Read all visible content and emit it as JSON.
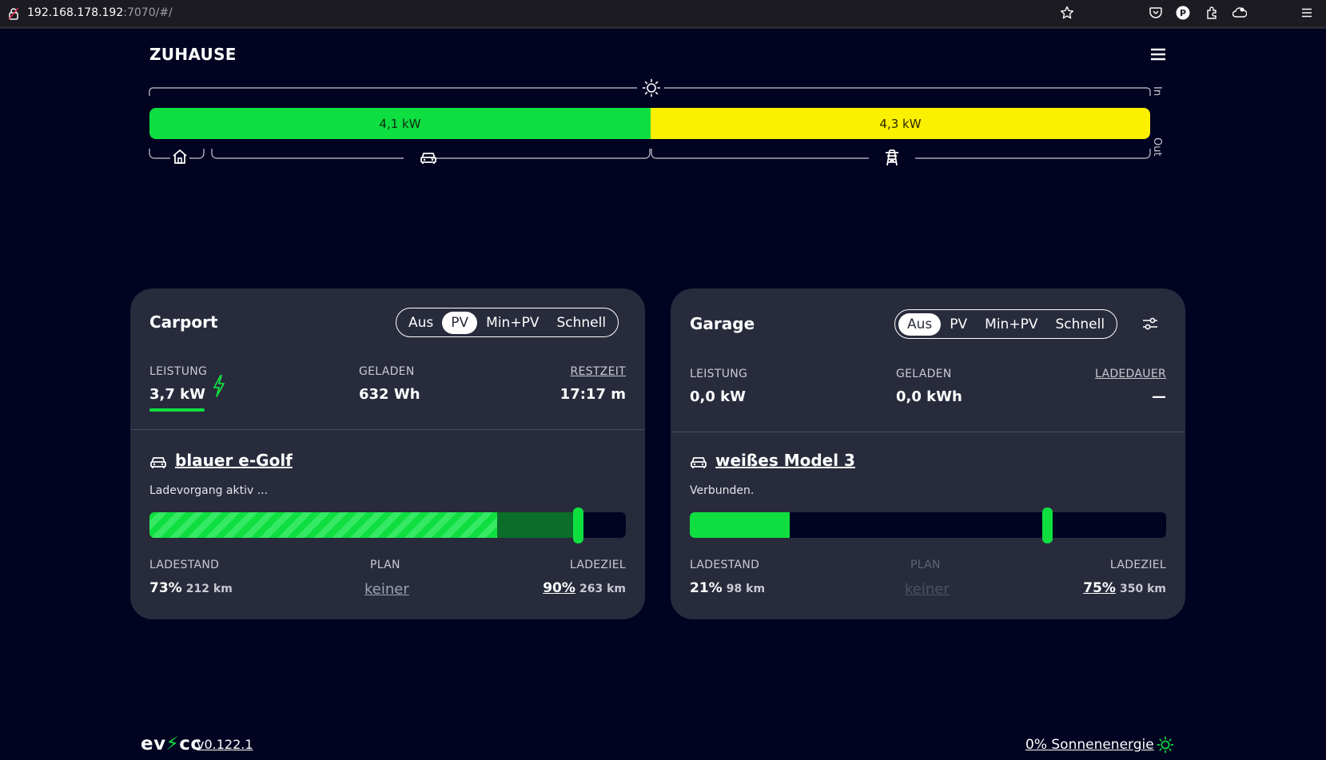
{
  "browser": {
    "url_host": "192.168.178.192",
    "url_rest": ":7070/#/"
  },
  "site": {
    "title": "ZUHAUSE"
  },
  "energyflow": {
    "pv_power": "4,1 kW",
    "grid_power": "4,3 kW",
    "in_label": "In",
    "out_label": "Out",
    "colors": {
      "pv": "#0fde41",
      "grid": "#faf000"
    }
  },
  "loadpoints": [
    {
      "title": "Carport",
      "modes": [
        "Aus",
        "PV",
        "Min+PV",
        "Schnell"
      ],
      "active_mode": "PV",
      "stats": {
        "power_label": "LEISTUNG",
        "power_value": "3,7 kW",
        "charged_label": "GELADEN",
        "charged_value": "632 Wh",
        "time_label": "RESTZEIT",
        "time_value": "17:17 m"
      },
      "vehicle": {
        "name": "blauer e-Golf",
        "status": "Ladevorgang aktiv ...",
        "soc_fraction": 0.73,
        "target_fraction": 0.9,
        "soc_label": "LADESTAND",
        "soc_pct": "73%",
        "soc_km": "212 km",
        "plan_label": "PLAN",
        "plan_value": "keiner",
        "target_label": "LADEZIEL",
        "target_pct": "90%",
        "target_km": "263 km"
      }
    },
    {
      "title": "Garage",
      "modes": [
        "Aus",
        "PV",
        "Min+PV",
        "Schnell"
      ],
      "active_mode": "Aus",
      "stats": {
        "power_label": "LEISTUNG",
        "power_value": "0,0 kW",
        "charged_label": "GELADEN",
        "charged_value": "0,0 kWh",
        "time_label": "LADEDAUER",
        "time_value": "—"
      },
      "vehicle": {
        "name": "weißes Model 3",
        "status": "Verbunden.",
        "soc_fraction": 0.21,
        "target_fraction": 0.75,
        "soc_label": "LADESTAND",
        "soc_pct": "21%",
        "soc_km": "98 km",
        "plan_label": "PLAN",
        "plan_value": "keiner",
        "target_label": "LADEZIEL",
        "target_pct": "75%",
        "target_km": "350 km"
      }
    }
  ],
  "footer": {
    "logo_left": "ev",
    "logo_bolt": "⚡",
    "logo_right": "cc",
    "version": "v0.122.1",
    "solar": "0% Sonnenenergie"
  }
}
